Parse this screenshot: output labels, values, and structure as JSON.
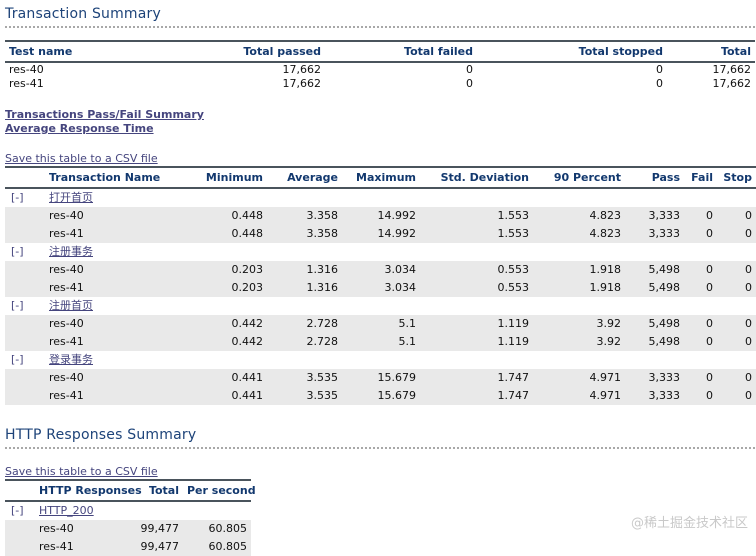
{
  "sections": {
    "transaction_summary_title": "Transaction Summary",
    "http_summary_title": "HTTP Responses Summary"
  },
  "links": {
    "pass_fail_summary": "Transactions Pass/Fail Summary",
    "avg_response_time": "Average Response Time",
    "save_csv": "Save this table to a CSV file"
  },
  "summary_table": {
    "headers": [
      "Test name",
      "Total passed",
      "Total failed",
      "Total stopped",
      "Total"
    ],
    "rows": [
      {
        "name": "res-40",
        "values": [
          "17,662",
          "0",
          "0",
          "17,662"
        ]
      },
      {
        "name": "res-41",
        "values": [
          "17,662",
          "0",
          "0",
          "17,662"
        ]
      }
    ]
  },
  "transactions_table": {
    "expander": "[-]",
    "headers": [
      "Transaction Name",
      "Minimum",
      "Average",
      "Maximum",
      "Std. Deviation",
      "90 Percent",
      "Pass",
      "Fail",
      "Stop"
    ],
    "groups": [
      {
        "name": "打开首页",
        "rows": [
          {
            "name": "res-40",
            "values": [
              "0.448",
              "3.358",
              "14.992",
              "1.553",
              "4.823",
              "3,333",
              "0",
              "0"
            ]
          },
          {
            "name": "res-41",
            "values": [
              "0.448",
              "3.358",
              "14.992",
              "1.553",
              "4.823",
              "3,333",
              "0",
              "0"
            ]
          }
        ]
      },
      {
        "name": "注册事务",
        "rows": [
          {
            "name": "res-40",
            "values": [
              "0.203",
              "1.316",
              "3.034",
              "0.553",
              "1.918",
              "5,498",
              "0",
              "0"
            ]
          },
          {
            "name": "res-41",
            "values": [
              "0.203",
              "1.316",
              "3.034",
              "0.553",
              "1.918",
              "5,498",
              "0",
              "0"
            ]
          }
        ]
      },
      {
        "name": "注册首页",
        "rows": [
          {
            "name": "res-40",
            "values": [
              "0.442",
              "2.728",
              "5.1",
              "1.119",
              "3.92",
              "5,498",
              "0",
              "0"
            ]
          },
          {
            "name": "res-41",
            "values": [
              "0.442",
              "2.728",
              "5.1",
              "1.119",
              "3.92",
              "5,498",
              "0",
              "0"
            ]
          }
        ]
      },
      {
        "name": "登录事务",
        "rows": [
          {
            "name": "res-40",
            "values": [
              "0.441",
              "3.535",
              "15.679",
              "1.747",
              "4.971",
              "3,333",
              "0",
              "0"
            ]
          },
          {
            "name": "res-41",
            "values": [
              "0.441",
              "3.535",
              "15.679",
              "1.747",
              "4.971",
              "3,333",
              "0",
              "0"
            ]
          }
        ]
      }
    ]
  },
  "http_table": {
    "expander": "[-]",
    "headers": [
      "HTTP Responses",
      "Total",
      "Per second"
    ],
    "groups": [
      {
        "name": "HTTP_200",
        "rows": [
          {
            "name": "res-40",
            "values": [
              "99,477",
              "60.805"
            ]
          },
          {
            "name": "res-41",
            "values": [
              "99,477",
              "60.805"
            ]
          }
        ]
      }
    ]
  },
  "colors": {
    "heading": "#1d4379",
    "link": "#45457e",
    "table_header_text": "#12386e",
    "row_stripe": "#e9e9e9",
    "border_dark": "#4a545c"
  },
  "watermark": "@稀土掘金技术社区"
}
